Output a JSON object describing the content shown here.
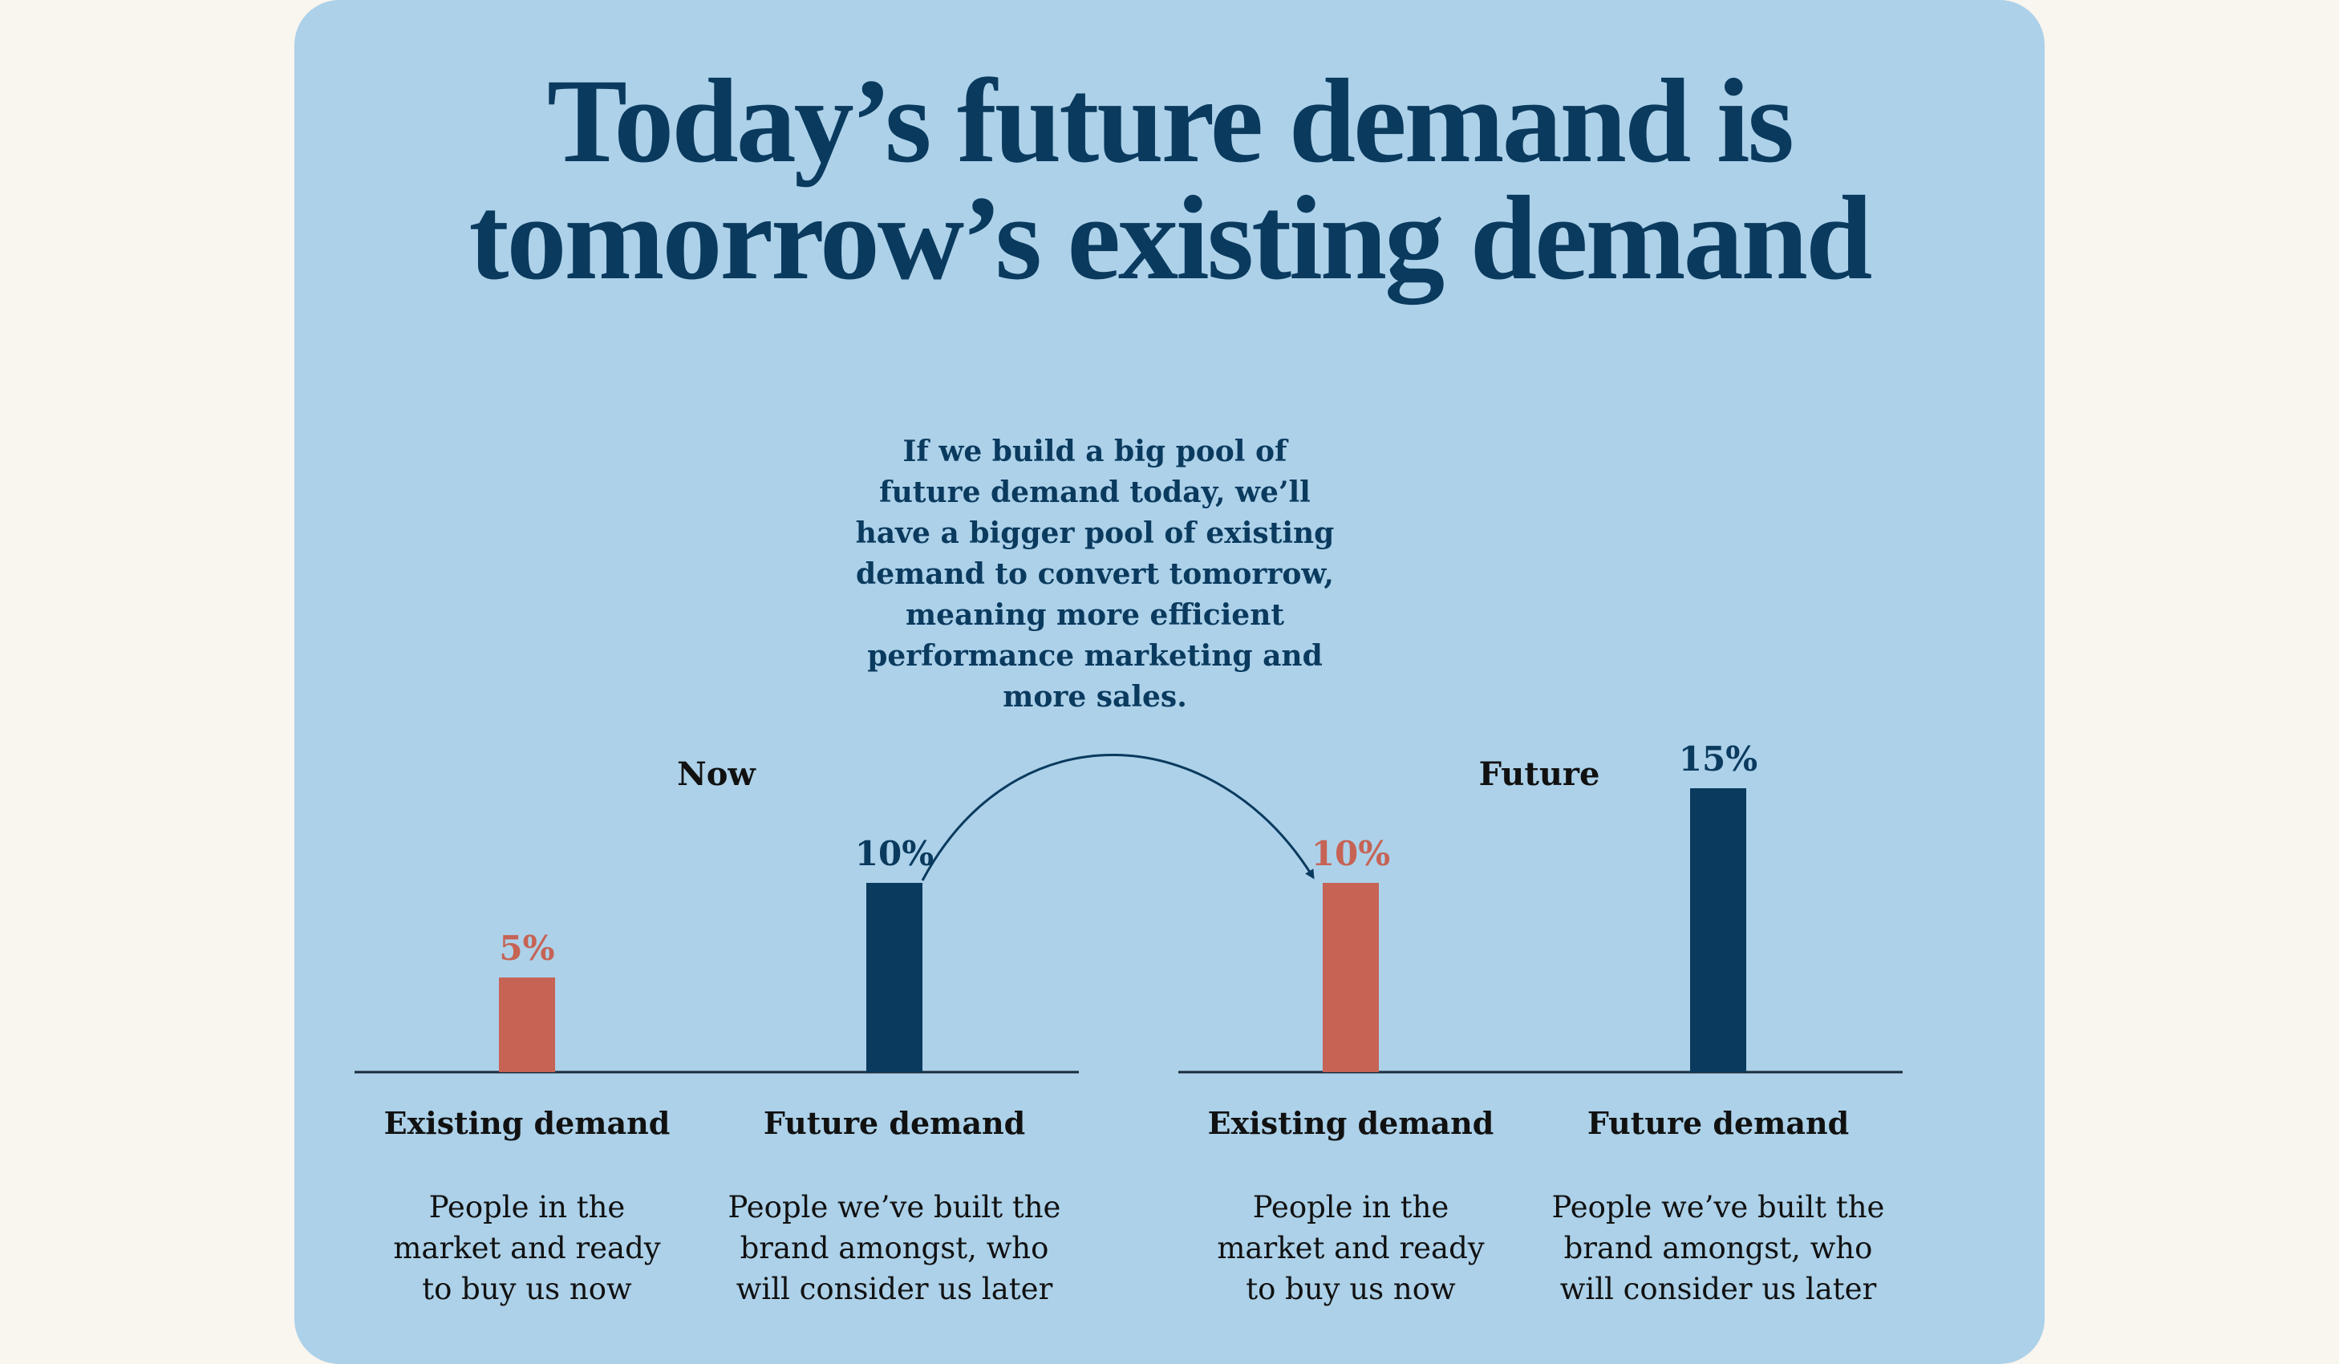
{
  "title": {
    "line1": "Today’s future demand is",
    "line2": "tomorrow’s existing demand"
  },
  "annotation": "If we build a big pool of future demand today, we’ll have a bigger pool of existing demand to convert tomorrow, meaning more efficient performance marketing and more sales.",
  "colors": {
    "background": "#f9f5ef",
    "card": "#acd1e9",
    "existing": "#c66355",
    "future": "#0a3a5e",
    "text": "#111111"
  },
  "chart_data": {
    "type": "bar",
    "unit": "%",
    "ylim": [
      0,
      15
    ],
    "grid": false,
    "legend": "none",
    "groups": [
      {
        "label": "Now",
        "bars": [
          {
            "category": "Existing demand",
            "value": 5,
            "label": "5%",
            "color": "#c66355",
            "description": [
              "People in the",
              "market and ready",
              "to buy us now"
            ]
          },
          {
            "category": "Future demand",
            "value": 10,
            "label": "10%",
            "color": "#0a3a5e",
            "description": [
              "People we’ve built the",
              "brand amongst, who",
              "will consider us later"
            ]
          }
        ]
      },
      {
        "label": "Future",
        "bars": [
          {
            "category": "Existing demand",
            "value": 10,
            "label": "10%",
            "color": "#c66355",
            "description": [
              "People in the",
              "market and ready",
              "to buy us now"
            ]
          },
          {
            "category": "Future demand",
            "value": 15,
            "label": "15%",
            "color": "#0a3a5e",
            "description": [
              "People we’ve built the",
              "brand amongst, who",
              "will consider us later"
            ]
          }
        ]
      }
    ]
  }
}
